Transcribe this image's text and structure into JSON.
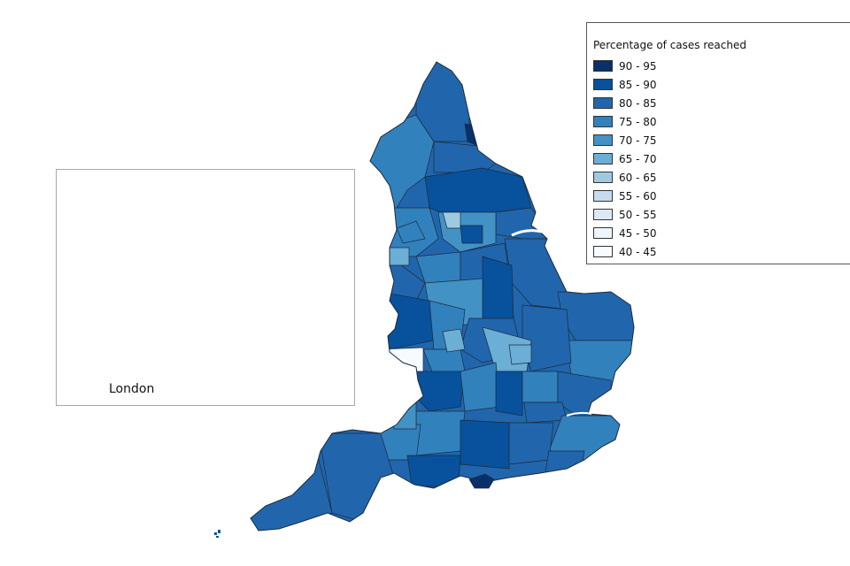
{
  "legend": {
    "title": "Percentage of cases reached",
    "items": [
      {
        "label": "90 - 95",
        "color": "#08306b"
      },
      {
        "label": "85 - 90",
        "color": "#08519c"
      },
      {
        "label": "80 - 85",
        "color": "#2166ac"
      },
      {
        "label": "75 - 80",
        "color": "#3181bd"
      },
      {
        "label": "70 - 75",
        "color": "#4292c6"
      },
      {
        "label": "65 - 70",
        "color": "#6baed6"
      },
      {
        "label": "60 - 65",
        "color": "#9ecae1"
      },
      {
        "label": "55 - 60",
        "color": "#c6dbef"
      },
      {
        "label": "50 - 55",
        "color": "#dbe9f6"
      },
      {
        "label": "45 - 50",
        "color": "#eef5fc"
      },
      {
        "label": "40 - 45",
        "color": "#f7fbff"
      }
    ]
  },
  "inset": {
    "label": "London"
  }
}
